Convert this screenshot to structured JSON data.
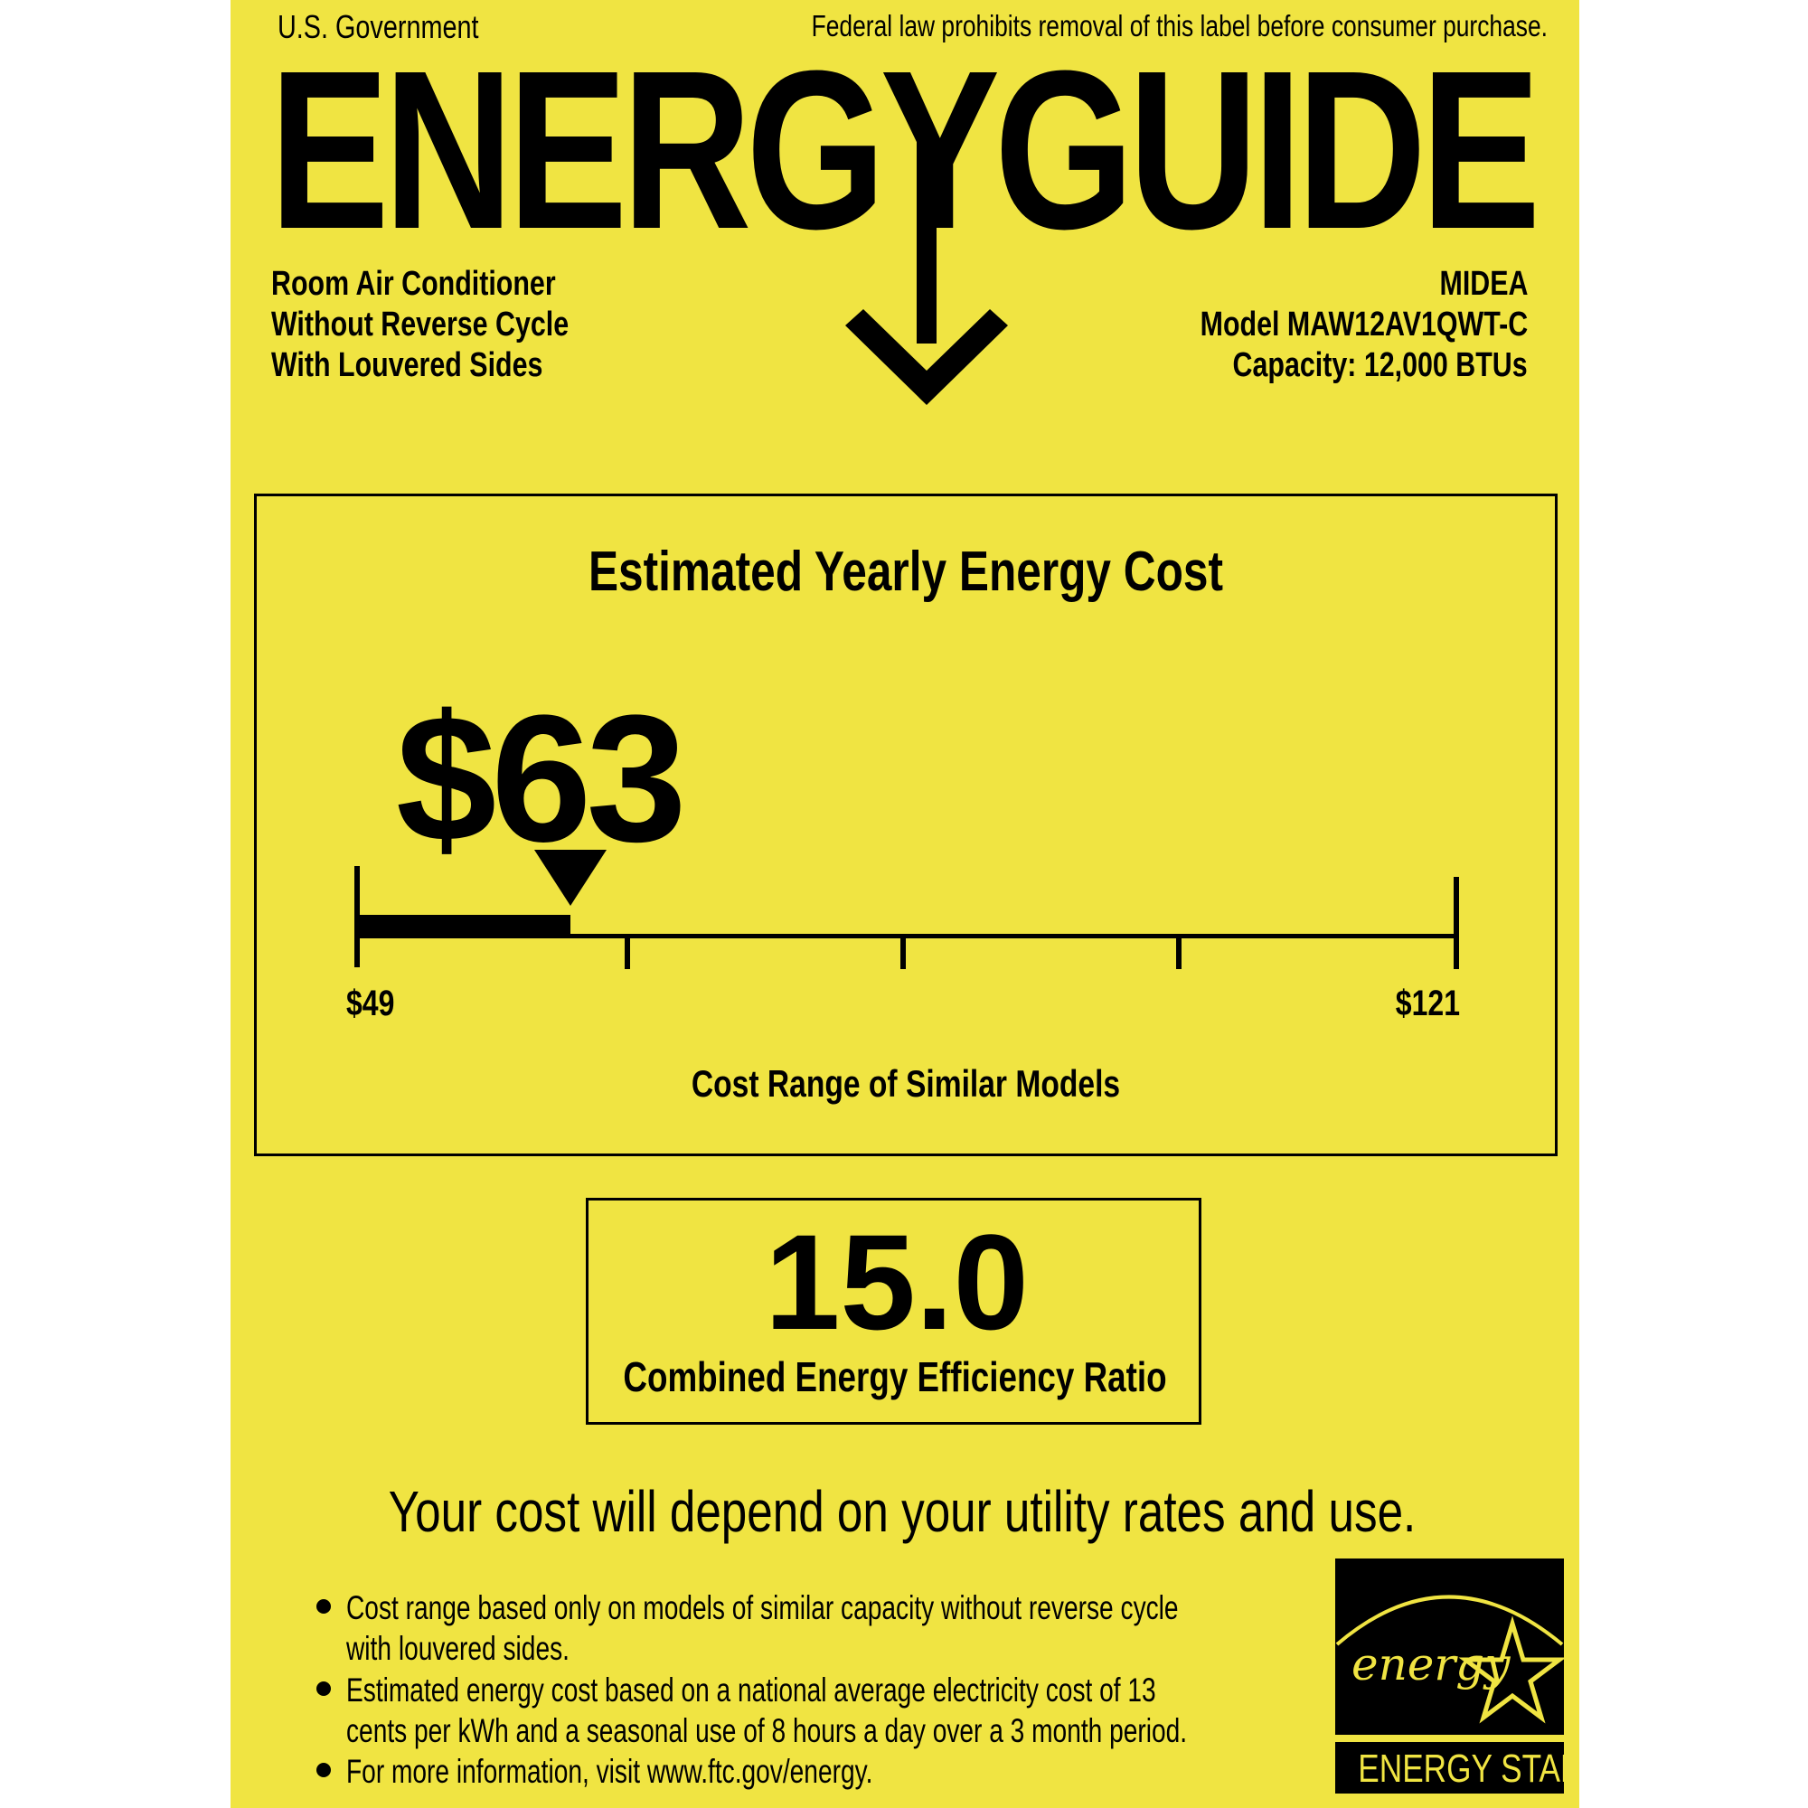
{
  "header": {
    "issuer": "U.S. Government",
    "notice": "Federal law prohibits removal of this label before consumer purchase.",
    "title": "ENERGYGUIDE"
  },
  "product": {
    "lines": [
      "Room Air Conditioner",
      "Without Reverse Cycle",
      "With Louvered Sides"
    ],
    "brand": "MIDEA",
    "model": "Model MAW12AV1QWT-C",
    "capacity": "Capacity: 12,000 BTUs"
  },
  "cost": {
    "heading": "Estimated Yearly Energy Cost",
    "value": "$63",
    "amount": 63,
    "range_min": "$49",
    "range_max": "$121",
    "min": 49,
    "max": 121,
    "range_caption": "Cost Range of Similar Models"
  },
  "efficiency": {
    "value": "15.0",
    "caption": "Combined Energy Efficiency Ratio"
  },
  "disclaimer": "Your cost will depend on your utility rates and use.",
  "notes": [
    [
      "Cost range based only on models of similar capacity without reverse cycle",
      "with louvered sides."
    ],
    [
      "Estimated energy cost based on a national average electricity cost of 13",
      "cents per kWh and a seasonal use of 8 hours a day over a 3 month period."
    ],
    [
      "For more information, visit www.ftc.gov/energy."
    ]
  ],
  "logo": {
    "script": "energy",
    "name": "ENERGY STAR"
  },
  "colors": {
    "label": "#f0e442",
    "ink": "#000000"
  }
}
